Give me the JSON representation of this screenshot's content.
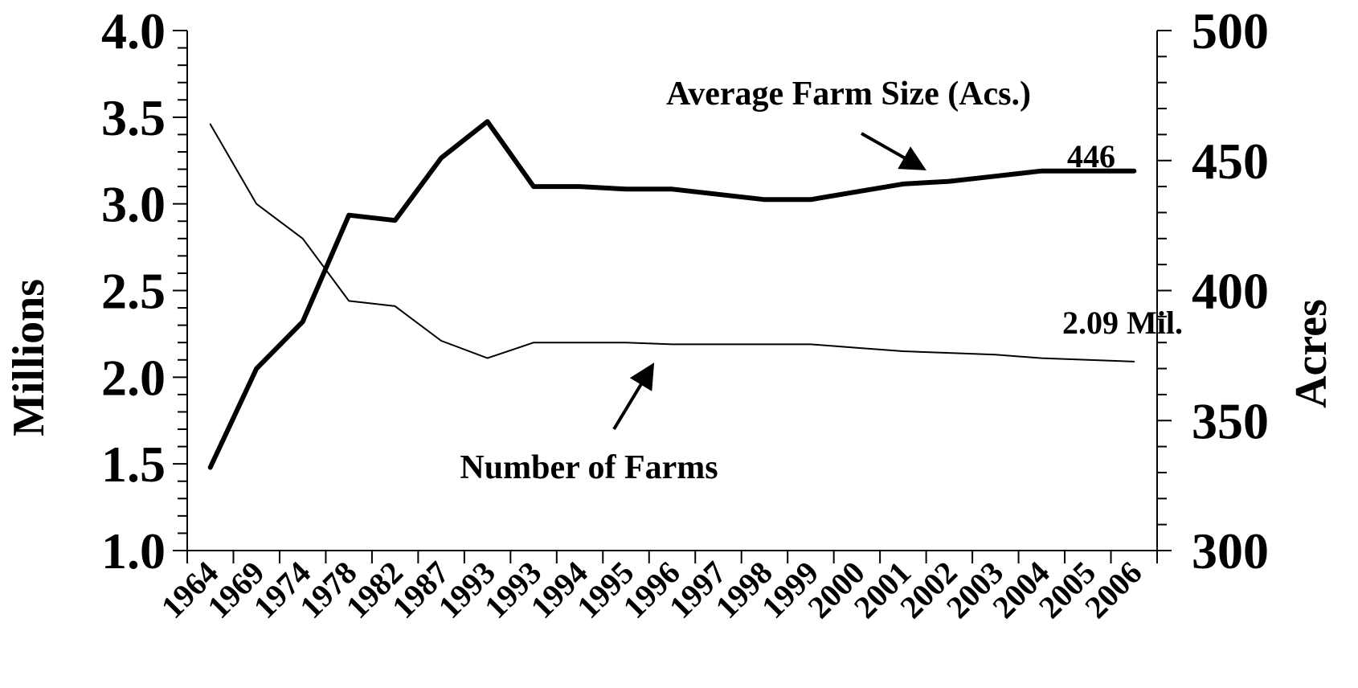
{
  "chart_data": {
    "type": "line",
    "x": [
      "1964",
      "1969",
      "1974",
      "1978",
      "1982",
      "1987",
      "1993",
      "1993",
      "1994",
      "1995",
      "1996",
      "1997",
      "1998",
      "1999",
      "2000",
      "2001",
      "2002",
      "2003",
      "2004",
      "2005",
      "2006"
    ],
    "series": [
      {
        "name": "Number of Farms",
        "axis": "left",
        "values": [
          3.46,
          3.0,
          2.8,
          2.44,
          2.41,
          2.21,
          2.11,
          2.2,
          2.2,
          2.2,
          2.19,
          2.19,
          2.19,
          2.19,
          2.17,
          2.15,
          2.14,
          2.13,
          2.11,
          2.1,
          2.09
        ]
      },
      {
        "name": "Average Farm Size (Acs.)",
        "axis": "right",
        "values": [
          332,
          370,
          388,
          429,
          427,
          451,
          465,
          440,
          440,
          439,
          439,
          437,
          435,
          435,
          438,
          441,
          442,
          444,
          446,
          446,
          446
        ]
      }
    ],
    "ylabel": "Millions",
    "ylabel_right": "Acres",
    "ylim": [
      1.0,
      4.0
    ],
    "ylim_right": [
      300,
      500
    ],
    "yticks": [
      "1.0",
      "1.5",
      "2.0",
      "2.5",
      "3.0",
      "3.5",
      "4.0"
    ],
    "yticks_right": [
      "300",
      "350",
      "400",
      "450",
      "500"
    ],
    "annotations": {
      "size_label": "Average Farm Size (Acs.)",
      "farms_label": "Number of Farms",
      "size_end": "446",
      "farms_end": "2.09 Mil."
    },
    "grid": false,
    "legend": "none",
    "colors": {
      "line": "#000000",
      "background": "#ffffff"
    }
  }
}
